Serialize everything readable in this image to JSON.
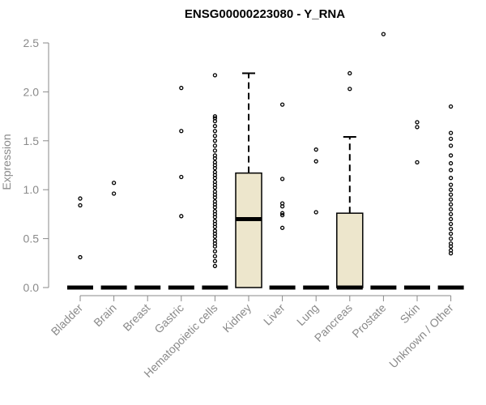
{
  "chart_data": {
    "type": "box",
    "title": "ENSG00000223080 - Y_RNA",
    "xlabel": "",
    "ylabel": "Expression",
    "ylim": [
      0,
      2.5
    ],
    "yticks": [
      "0.0",
      "0.5",
      "1.0",
      "1.5",
      "2.0",
      "2.5"
    ],
    "categories": [
      "Bladder",
      "Brain",
      "Breast",
      "Gastric",
      "Hematopoietic cells",
      "Kidney",
      "Liver",
      "Lung",
      "Pancreas",
      "Prostate",
      "Skin",
      "Unknown / Other"
    ],
    "box_fill": "#ede6cc",
    "boxes": [
      {
        "label": "Bladder",
        "q1": 0,
        "median": 0,
        "q3": 0,
        "whisker_low": 0,
        "whisker_high": 0,
        "outliers": [
          0.31,
          0.84,
          0.91
        ]
      },
      {
        "label": "Brain",
        "q1": 0,
        "median": 0,
        "q3": 0,
        "whisker_low": 0,
        "whisker_high": 0,
        "outliers": [
          0.96,
          1.07
        ]
      },
      {
        "label": "Breast",
        "q1": 0,
        "median": 0,
        "q3": 0,
        "whisker_low": 0,
        "whisker_high": 0,
        "outliers": []
      },
      {
        "label": "Gastric",
        "q1": 0,
        "median": 0,
        "q3": 0,
        "whisker_low": 0,
        "whisker_high": 0,
        "outliers": [
          0.73,
          1.13,
          1.6,
          2.04
        ]
      },
      {
        "label": "Hematopoietic cells",
        "q1": 0,
        "median": 0,
        "q3": 0,
        "whisker_low": 0,
        "whisker_high": 0,
        "outliers": [
          0.22,
          0.27,
          0.32,
          0.37,
          0.42,
          0.45,
          0.48,
          0.52,
          0.55,
          0.58,
          0.62,
          0.65,
          0.68,
          0.72,
          0.75,
          0.78,
          0.82,
          0.85,
          0.88,
          0.92,
          0.95,
          0.98,
          1.02,
          1.05,
          1.08,
          1.12,
          1.15,
          1.18,
          1.22,
          1.25,
          1.28,
          1.32,
          1.35,
          1.4,
          1.45,
          1.5,
          1.55,
          1.6,
          1.65,
          1.7,
          1.73,
          1.75,
          2.17
        ]
      },
      {
        "label": "Kidney",
        "q1": 0,
        "median": 0.7,
        "q3": 1.17,
        "whisker_low": 0,
        "whisker_high": 2.19,
        "outliers": []
      },
      {
        "label": "Liver",
        "q1": 0,
        "median": 0,
        "q3": 0,
        "whisker_low": 0,
        "whisker_high": 0,
        "outliers": [
          0.61,
          0.74,
          0.76,
          0.83,
          0.86,
          1.11,
          1.87
        ]
      },
      {
        "label": "Lung",
        "q1": 0,
        "median": 0,
        "q3": 0,
        "whisker_low": 0,
        "whisker_high": 0,
        "outliers": [
          0.77,
          1.29,
          1.41
        ]
      },
      {
        "label": "Pancreas",
        "q1": 0,
        "median": 0,
        "q3": 0.76,
        "whisker_low": 0,
        "whisker_high": 1.54,
        "outliers": [
          2.03,
          2.19
        ]
      },
      {
        "label": "Prostate",
        "q1": 0,
        "median": 0,
        "q3": 0,
        "whisker_low": 0,
        "whisker_high": 0,
        "outliers": [
          2.59
        ]
      },
      {
        "label": "Skin",
        "q1": 0,
        "median": 0,
        "q3": 0,
        "whisker_low": 0,
        "whisker_high": 0,
        "outliers": [
          1.28,
          1.64,
          1.69
        ]
      },
      {
        "label": "Unknown / Other",
        "q1": 0,
        "median": 0,
        "q3": 0,
        "whisker_low": 0,
        "whisker_high": 0,
        "outliers": [
          0.35,
          0.38,
          0.42,
          0.45,
          0.5,
          0.55,
          0.6,
          0.65,
          0.7,
          0.75,
          0.8,
          0.85,
          0.9,
          0.95,
          1.0,
          1.05,
          1.12,
          1.2,
          1.27,
          1.35,
          1.45,
          1.52,
          1.58,
          1.85
        ]
      }
    ]
  }
}
